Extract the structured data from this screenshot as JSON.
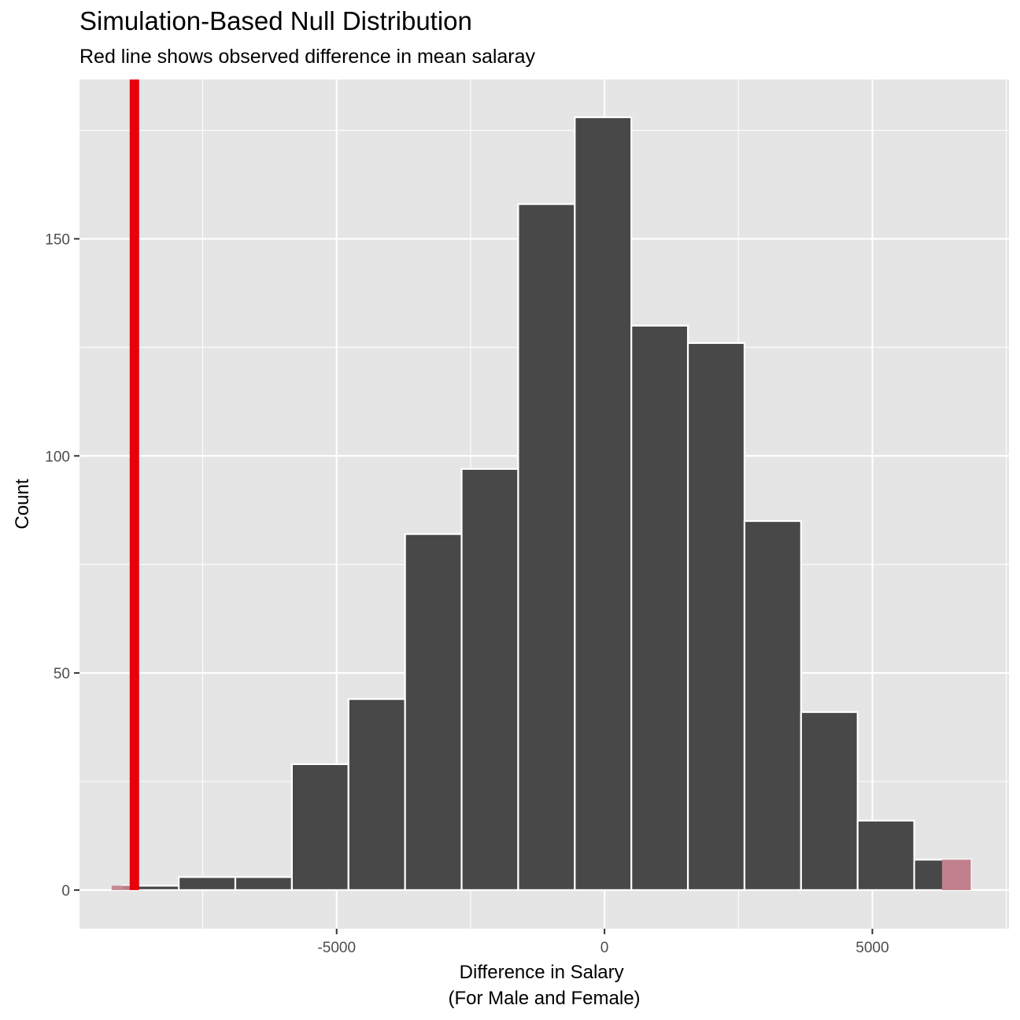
{
  "chart_data": {
    "type": "bar",
    "subtype": "histogram",
    "title": "Simulation-Based Null Distribution",
    "subtitle": "Red line shows observed difference in mean salaray",
    "xlabel": "Difference in Salary\n(For Male and Female)",
    "xlabel_lines": [
      "Difference in Salary",
      "(For Male and Female)"
    ],
    "ylabel": "Count",
    "xlim": [
      -9800,
      7550
    ],
    "ylim": [
      -8.9,
      186.7
    ],
    "x_major_ticks": [
      -5000,
      0,
      5000
    ],
    "x_tick_labels": [
      "-5000",
      "0",
      "5000"
    ],
    "x_minor_ticks": [
      -7500,
      -2500,
      2500,
      7500
    ],
    "y_major_ticks": [
      0,
      50,
      100,
      150
    ],
    "y_tick_labels": [
      "0",
      "50",
      "100",
      "150"
    ],
    "y_minor_ticks": [
      25,
      75,
      125,
      175
    ],
    "bins": [
      {
        "x0": -9003,
        "x1": -7947,
        "count": 1
      },
      {
        "x0": -7947,
        "x1": -6891,
        "count": 3
      },
      {
        "x0": -6891,
        "x1": -5835,
        "count": 3
      },
      {
        "x0": -5835,
        "x1": -4779,
        "count": 29
      },
      {
        "x0": -4779,
        "x1": -3723,
        "count": 44
      },
      {
        "x0": -3723,
        "x1": -2667,
        "count": 82
      },
      {
        "x0": -2667,
        "x1": -1611,
        "count": 97
      },
      {
        "x0": -1611,
        "x1": -555,
        "count": 158
      },
      {
        "x0": -555,
        "x1": 501,
        "count": 178
      },
      {
        "x0": 501,
        "x1": 1557,
        "count": 130
      },
      {
        "x0": 1557,
        "x1": 2613,
        "count": 126
      },
      {
        "x0": 2613,
        "x1": 3669,
        "count": 85
      },
      {
        "x0": 3669,
        "x1": 4725,
        "count": 41
      },
      {
        "x0": 4725,
        "x1": 5781,
        "count": 16
      },
      {
        "x0": 5781,
        "x1": 6837,
        "count": 7
      }
    ],
    "shaded_regions": [
      {
        "x0": -9200,
        "x1": -8775
      },
      {
        "x0": 6820,
        "x1": 6820
      }
    ],
    "observed_line": {
      "x": -8775,
      "color": "#e8000b"
    },
    "colors": {
      "panel": "#e5e5e5",
      "grid": "#ffffff",
      "bar_fill": "#484848",
      "bar_outline": "#ffffff",
      "shade": "#c0808b"
    },
    "grid": true,
    "legend": "none"
  }
}
